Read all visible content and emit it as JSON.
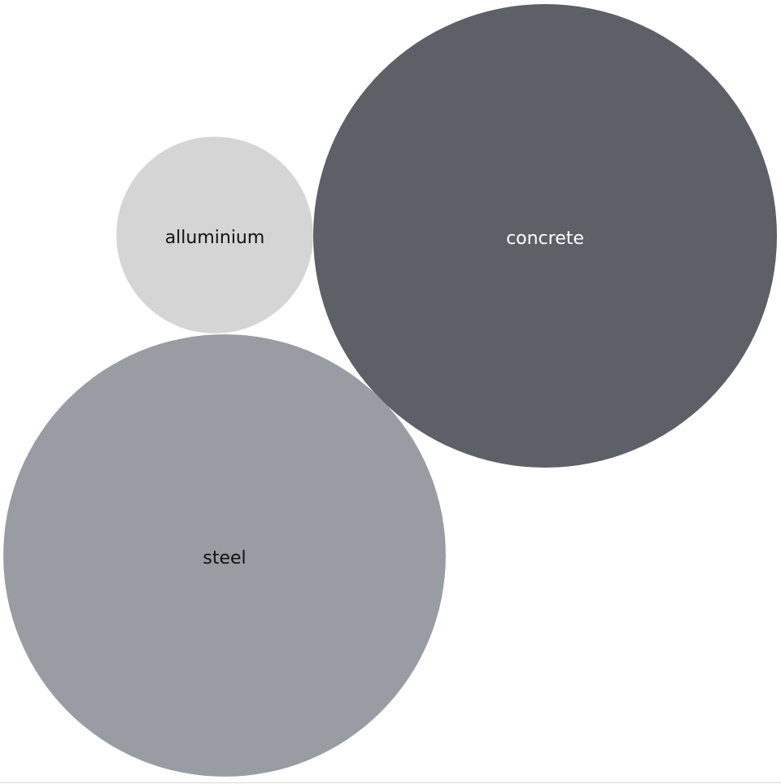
{
  "chart_data": {
    "type": "bubble",
    "title": "",
    "legend": "none",
    "series": [
      {
        "name": "concrete",
        "value": 100,
        "color": "#5e6068",
        "label_color": "#ffffff"
      },
      {
        "name": "steel",
        "value": 91,
        "color": "#999ca3",
        "label_color": "#111111"
      },
      {
        "name": "alluminium",
        "value": 18,
        "color": "#d5d5d5",
        "label_color": "#111111"
      }
    ]
  }
}
